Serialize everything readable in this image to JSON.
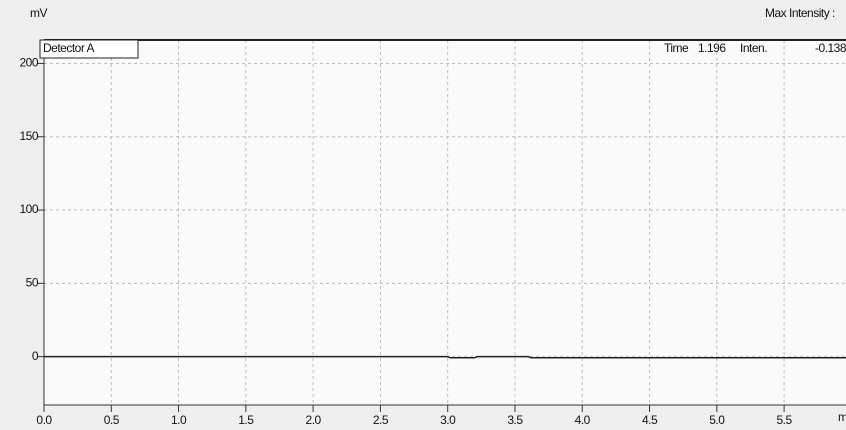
{
  "chart_data": {
    "type": "line",
    "y_label": "mV",
    "x_label": "min",
    "header": {
      "max_intensity": "Max Intensity :"
    },
    "cursor": {
      "time_label": "Time",
      "time": "1.196",
      "intensity_label": "Inten.",
      "intensity": "-0.138"
    },
    "x": [
      0,
      3.0,
      3.02,
      3.2,
      3.22,
      3.6,
      3.62,
      5.96
    ],
    "series": [
      {
        "name": "Detector A",
        "color": "#222222",
        "values": [
          0,
          0,
          -0.8,
          -0.8,
          0,
          0,
          -0.8,
          -0.8
        ]
      }
    ],
    "xlim": [
      0,
      5.96
    ],
    "xticks": [
      {
        "value": 0,
        "label": "0.0"
      },
      0.5,
      {
        "value": 1,
        "label": "1.0"
      },
      1.5,
      {
        "value": 2,
        "label": "2.0"
      },
      2.5,
      {
        "value": 3,
        "label": "3.0"
      },
      3.5,
      {
        "value": 4,
        "label": "4.0"
      },
      4.5,
      {
        "value": 5,
        "label": "5.0"
      },
      5.5
    ],
    "ylim": [
      -33,
      216
    ],
    "yticks": [
      0,
      50,
      100,
      150,
      200
    ],
    "grid": true
  }
}
